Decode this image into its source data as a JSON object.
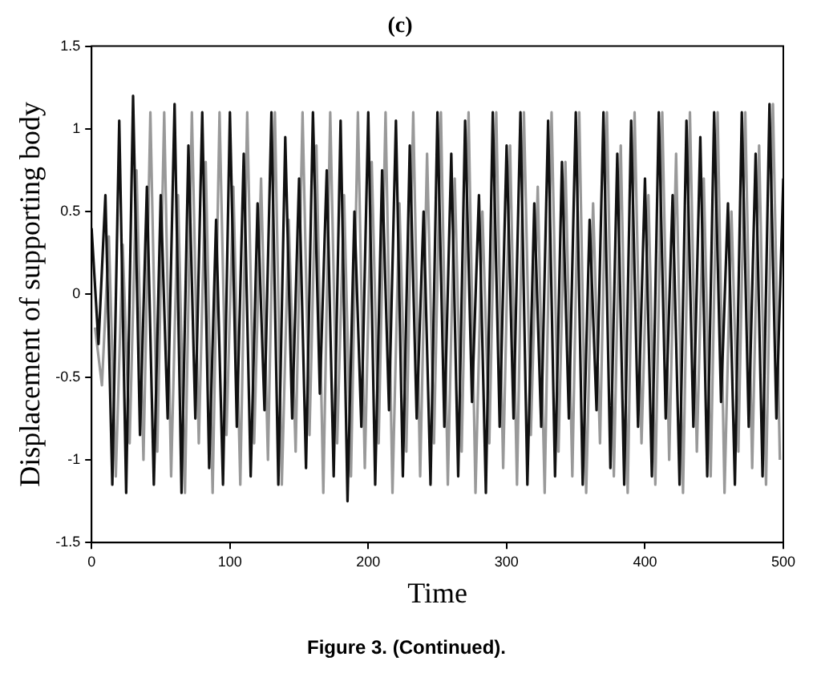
{
  "chart_data": {
    "type": "line",
    "title": "(c)",
    "xlabel": "Time",
    "ylabel": "Displacement of supporting body",
    "annotations": [
      "Figure 3. (Continued)."
    ],
    "xlim": [
      0,
      500
    ],
    "xticks": [
      0,
      100,
      200,
      300,
      400,
      500
    ],
    "ylim": [
      -1.5,
      1.5
    ],
    "yticks": [
      -1.5,
      -1,
      -0.5,
      0,
      0.5,
      1,
      1.5
    ],
    "grid": false,
    "legend": false,
    "marker": "none",
    "line_style": "solid",
    "series": [
      {
        "color": "#111111",
        "x": [
          0,
          5,
          10,
          15,
          20,
          25,
          30,
          35,
          40,
          45,
          50,
          55,
          60,
          65,
          70,
          75,
          80,
          85,
          90,
          95,
          100,
          105,
          110,
          115,
          120,
          125,
          130,
          135,
          140,
          145,
          150,
          155,
          160,
          165,
          170,
          175,
          180,
          185,
          190,
          195,
          200,
          205,
          210,
          215,
          220,
          225,
          230,
          235,
          240,
          245,
          250,
          255,
          260,
          265,
          270,
          275,
          280,
          285,
          290,
          295,
          300,
          305,
          310,
          315,
          320,
          325,
          330,
          335,
          340,
          345,
          350,
          355,
          360,
          365,
          370,
          375,
          380,
          385,
          390,
          395,
          400,
          405,
          410,
          415,
          420,
          425,
          430,
          435,
          440,
          445,
          450,
          455,
          460,
          465,
          470,
          475,
          480,
          485,
          490,
          495,
          500
        ],
        "values": [
          0.4,
          -0.3,
          0.6,
          -1.15,
          1.05,
          -1.2,
          1.2,
          -0.85,
          0.65,
          -1.15,
          0.6,
          -0.75,
          1.15,
          -1.2,
          0.9,
          -0.75,
          1.1,
          -1.05,
          0.45,
          -1.15,
          1.1,
          -0.8,
          0.85,
          -1.1,
          0.55,
          -0.7,
          1.1,
          -1.15,
          0.95,
          -0.75,
          0.7,
          -1.05,
          1.1,
          -0.6,
          0.75,
          -1.1,
          1.05,
          -1.25,
          0.5,
          -0.8,
          1.1,
          -1.15,
          0.75,
          -0.7,
          1.05,
          -1.1,
          0.9,
          -0.75,
          0.5,
          -1.15,
          1.1,
          -0.8,
          0.85,
          -1.1,
          1.05,
          -0.65,
          0.6,
          -1.2,
          1.1,
          -0.8,
          0.9,
          -0.75,
          1.1,
          -1.15,
          0.55,
          -0.8,
          1.05,
          -1.1,
          0.8,
          -0.75,
          1.1,
          -1.15,
          0.45,
          -0.7,
          1.1,
          -1.05,
          0.85,
          -1.15,
          1.05,
          -0.8,
          0.7,
          -1.1,
          1.1,
          -0.75,
          0.6,
          -1.15,
          1.05,
          -0.8,
          0.95,
          -1.1,
          1.1,
          -0.65,
          0.55,
          -1.15,
          1.1,
          -0.8,
          0.85,
          -1.1,
          1.15,
          -0.75,
          0.7
        ]
      },
      {
        "color": "#999999",
        "x": [
          2.5,
          7.5,
          12.5,
          17.5,
          22.5,
          27.5,
          32.5,
          37.5,
          42.5,
          47.5,
          52.5,
          57.5,
          62.5,
          67.5,
          72.5,
          77.5,
          82.5,
          87.5,
          92.5,
          97.5,
          102.5,
          107.5,
          112.5,
          117.5,
          122.5,
          127.5,
          132.5,
          137.5,
          142.5,
          147.5,
          152.5,
          157.5,
          162.5,
          167.5,
          172.5,
          177.5,
          182.5,
          187.5,
          192.5,
          197.5,
          202.5,
          207.5,
          212.5,
          217.5,
          222.5,
          227.5,
          232.5,
          237.5,
          242.5,
          247.5,
          252.5,
          257.5,
          262.5,
          267.5,
          272.5,
          277.5,
          282.5,
          287.5,
          292.5,
          297.5,
          302.5,
          307.5,
          312.5,
          317.5,
          322.5,
          327.5,
          332.5,
          337.5,
          342.5,
          347.5,
          352.5,
          357.5,
          362.5,
          367.5,
          372.5,
          377.5,
          382.5,
          387.5,
          392.5,
          397.5,
          402.5,
          407.5,
          412.5,
          417.5,
          422.5,
          427.5,
          432.5,
          437.5,
          442.5,
          447.5,
          452.5,
          457.5,
          462.5,
          467.5,
          472.5,
          477.5,
          482.5,
          487.5,
          492.5,
          497.5
        ],
        "values": [
          -0.2,
          -0.55,
          0.35,
          -1.1,
          0.3,
          -0.9,
          0.75,
          -1.0,
          1.1,
          -0.95,
          1.1,
          -1.1,
          0.6,
          -1.2,
          1.1,
          -0.9,
          0.8,
          -1.2,
          1.1,
          -0.85,
          0.65,
          -1.15,
          1.1,
          -0.9,
          0.7,
          -1.0,
          1.1,
          -1.15,
          0.45,
          -0.95,
          1.1,
          -0.85,
          0.9,
          -1.2,
          1.1,
          -0.9,
          0.6,
          -1.1,
          1.1,
          -1.05,
          0.8,
          -0.9,
          1.1,
          -1.2,
          0.55,
          -0.95,
          1.1,
          -1.1,
          0.85,
          -0.9,
          1.1,
          -1.15,
          0.7,
          -0.95,
          1.1,
          -1.2,
          0.5,
          -0.9,
          1.1,
          -1.05,
          0.9,
          -1.15,
          1.1,
          -0.85,
          0.65,
          -1.2,
          1.1,
          -0.95,
          0.8,
          -1.1,
          1.1,
          -1.2,
          0.55,
          -0.9,
          1.1,
          -1.1,
          0.9,
          -1.2,
          1.1,
          -0.9,
          0.6,
          -1.15,
          1.1,
          -1.0,
          0.85,
          -1.2,
          1.1,
          -0.95,
          0.7,
          -1.1,
          1.1,
          -1.2,
          0.5,
          -0.95,
          1.1,
          -1.05,
          0.9,
          -1.15,
          1.15,
          -1.0
        ]
      }
    ]
  }
}
